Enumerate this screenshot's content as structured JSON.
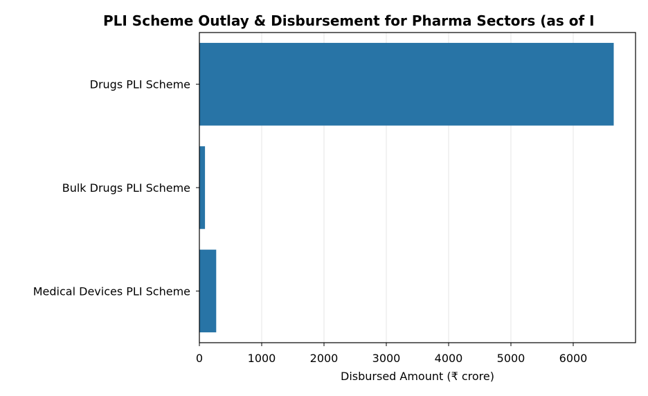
{
  "chart_data": {
    "type": "bar",
    "orientation": "horizontal",
    "title": "PLI Scheme Outlay & Disbursement for Pharma Sectors (as of I",
    "xlabel": "Disbursed Amount (₹ crore)",
    "ylabel": "",
    "categories": [
      "Drugs PLI Scheme",
      "Bulk Drugs PLI Scheme",
      "Medical Devices PLI Scheme"
    ],
    "values": [
      6650,
      90,
      270
    ],
    "xlim": [
      0,
      7000
    ],
    "xticks": [
      0,
      1000,
      2000,
      3000,
      4000,
      5000,
      6000
    ],
    "grid": "x",
    "bar_color": "#2874a6",
    "grid_color": "#e5e5e5",
    "spine_color": "#000000"
  }
}
